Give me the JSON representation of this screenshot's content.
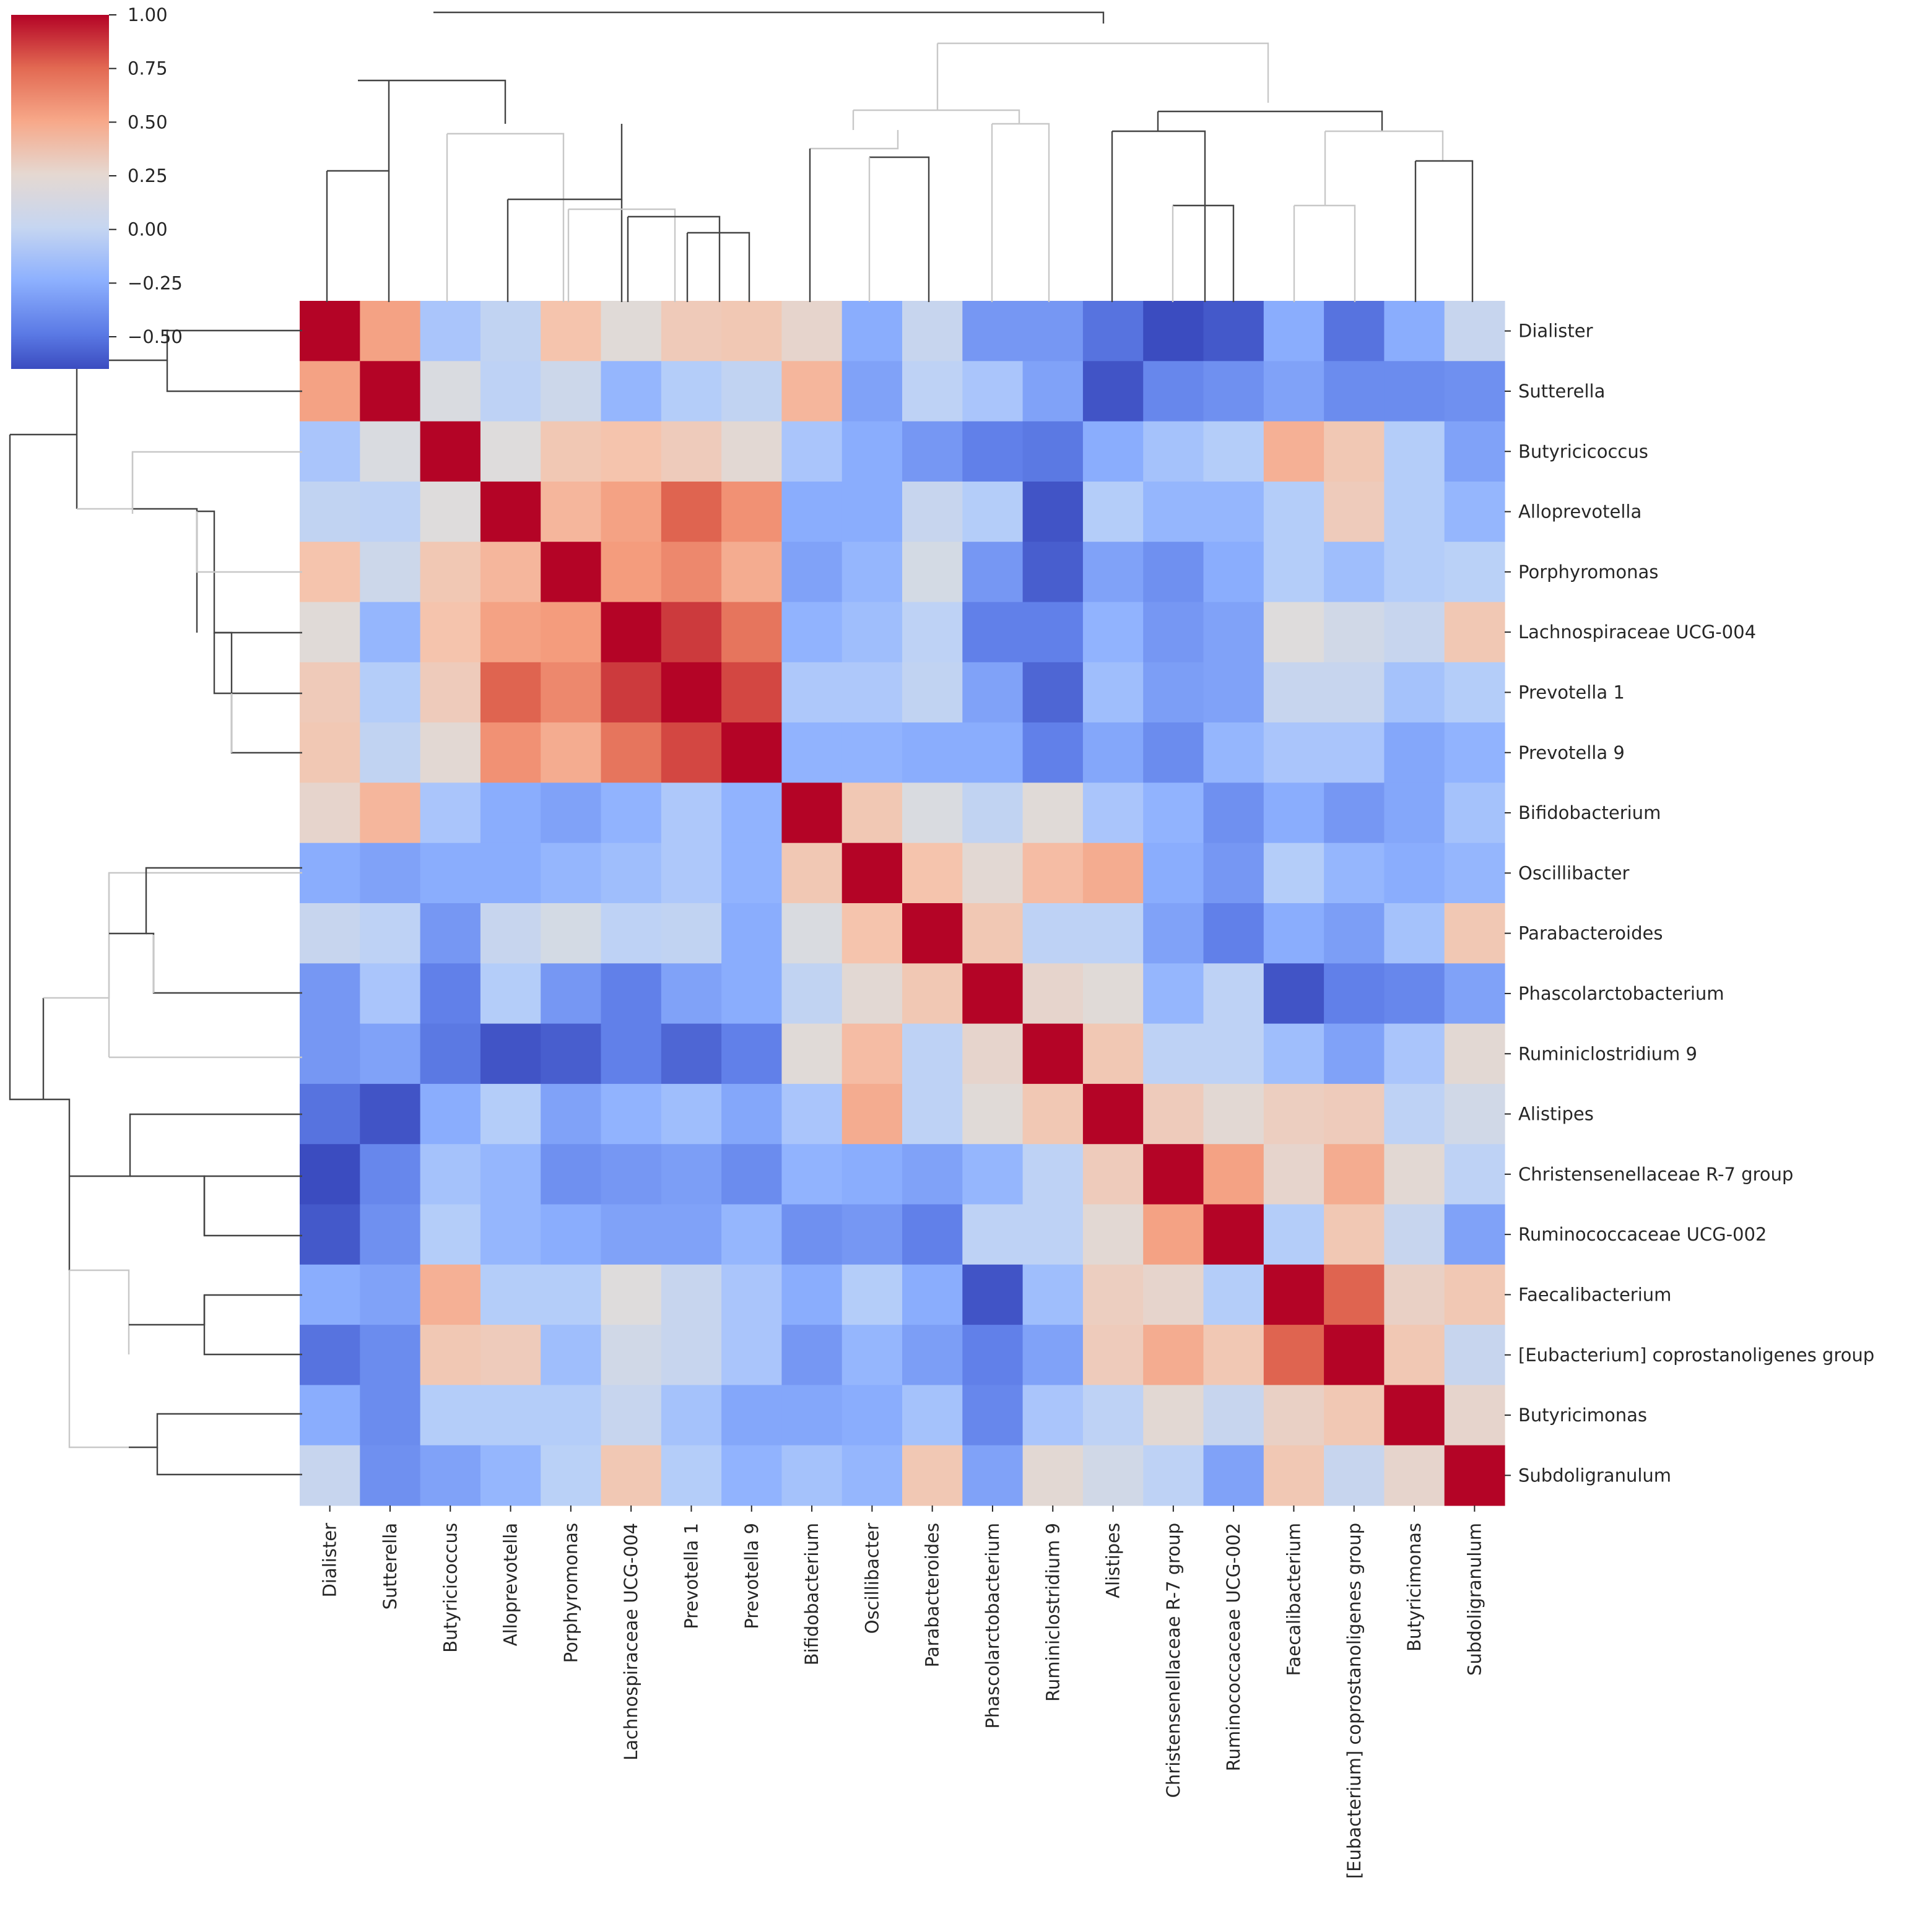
{
  "chart_data": {
    "type": "heatmap",
    "title": "",
    "xlabel": "",
    "ylabel": "",
    "colormap": "coolwarm",
    "vmin": -0.65,
    "vmax": 1.0,
    "colorbar": {
      "ticks": [
        1.0,
        0.75,
        0.5,
        0.25,
        0.0,
        -0.25,
        -0.5
      ],
      "tick_labels": [
        "1.00",
        "0.75",
        "0.50",
        "0.25",
        "0.00",
        "−0.25",
        "−0.50"
      ],
      "placement": "top-left"
    },
    "labels": [
      "Dialister",
      "Sutterella",
      "Butyricicoccus",
      "Alloprevotella",
      "Porphyromonas",
      "Lachnospiraceae UCG-004",
      "Prevotella 1",
      "Prevotella 9",
      "Bifidobacterium",
      "Oscillibacter",
      "Parabacteroides",
      "Phascolarctobacterium",
      "Ruminiclostridium 9",
      "Alistipes",
      "Christensenellaceae R-7 group",
      "Ruminococcaceae UCG-002",
      "Faecalibacterium",
      "[Eubacterium] coprostanoligenes group",
      "Butyricimonas",
      "Subdoligranulum"
    ],
    "matrix": [
      [
        1.0,
        0.55,
        -0.1,
        0.02,
        0.38,
        0.2,
        0.33,
        0.35,
        0.25,
        -0.25,
        0.05,
        -0.35,
        -0.35,
        -0.5,
        -0.65,
        -0.6,
        -0.25,
        -0.5,
        -0.25,
        0.05
      ],
      [
        0.55,
        1.0,
        0.15,
        0.0,
        0.08,
        -0.2,
        -0.05,
        0.02,
        0.45,
        -0.3,
        0.0,
        -0.1,
        -0.3,
        -0.62,
        -0.42,
        -0.38,
        -0.3,
        -0.4,
        -0.4,
        -0.38
      ],
      [
        -0.1,
        0.15,
        1.0,
        0.18,
        0.35,
        0.38,
        0.32,
        0.22,
        -0.1,
        -0.25,
        -0.35,
        -0.45,
        -0.48,
        -0.25,
        -0.12,
        -0.05,
        0.48,
        0.35,
        -0.05,
        -0.3
      ],
      [
        0.02,
        0.0,
        0.18,
        1.0,
        0.45,
        0.55,
        0.78,
        0.62,
        -0.25,
        -0.25,
        0.05,
        -0.05,
        -0.62,
        -0.05,
        -0.2,
        -0.2,
        -0.05,
        0.32,
        -0.05,
        -0.2
      ],
      [
        0.38,
        0.08,
        0.35,
        0.45,
        1.0,
        0.58,
        0.65,
        0.5,
        -0.3,
        -0.2,
        0.12,
        -0.35,
        -0.58,
        -0.3,
        -0.38,
        -0.25,
        -0.05,
        -0.15,
        -0.05,
        -0.02
      ],
      [
        0.2,
        -0.2,
        0.38,
        0.55,
        0.58,
        1.0,
        0.88,
        0.72,
        -0.22,
        -0.15,
        0.0,
        -0.45,
        -0.45,
        -0.22,
        -0.35,
        -0.3,
        0.18,
        0.1,
        0.05,
        0.35
      ],
      [
        0.33,
        -0.05,
        0.32,
        0.78,
        0.65,
        0.88,
        1.0,
        0.85,
        -0.08,
        -0.08,
        0.02,
        -0.3,
        -0.55,
        -0.15,
        -0.32,
        -0.3,
        0.05,
        0.05,
        -0.12,
        -0.05
      ],
      [
        0.35,
        0.02,
        0.22,
        0.62,
        0.5,
        0.72,
        0.85,
        1.0,
        -0.22,
        -0.22,
        -0.25,
        -0.25,
        -0.45,
        -0.28,
        -0.4,
        -0.2,
        -0.1,
        -0.1,
        -0.28,
        -0.22
      ],
      [
        0.25,
        0.45,
        -0.1,
        -0.25,
        -0.3,
        -0.22,
        -0.08,
        -0.22,
        1.0,
        0.35,
        0.15,
        0.02,
        0.2,
        -0.1,
        -0.22,
        -0.38,
        -0.25,
        -0.35,
        -0.28,
        -0.12
      ],
      [
        -0.25,
        -0.3,
        -0.25,
        -0.25,
        -0.2,
        -0.15,
        -0.08,
        -0.22,
        0.35,
        1.0,
        0.38,
        0.22,
        0.42,
        0.5,
        -0.25,
        -0.35,
        -0.05,
        -0.2,
        -0.25,
        -0.2
      ],
      [
        0.05,
        0.0,
        -0.35,
        0.05,
        0.12,
        0.0,
        0.02,
        -0.25,
        0.15,
        0.38,
        1.0,
        0.35,
        0.0,
        0.0,
        -0.3,
        -0.45,
        -0.25,
        -0.32,
        -0.12,
        0.35
      ],
      [
        -0.35,
        -0.1,
        -0.45,
        -0.05,
        -0.35,
        -0.45,
        -0.3,
        -0.25,
        0.02,
        0.22,
        0.35,
        1.0,
        0.25,
        0.2,
        -0.2,
        0.0,
        -0.62,
        -0.45,
        -0.42,
        -0.3
      ],
      [
        -0.35,
        -0.3,
        -0.48,
        -0.62,
        -0.58,
        -0.45,
        -0.55,
        -0.45,
        0.2,
        0.42,
        0.0,
        0.25,
        1.0,
        0.35,
        0.0,
        0.0,
        -0.15,
        -0.3,
        -0.1,
        0.22
      ],
      [
        -0.5,
        -0.62,
        -0.25,
        -0.05,
        -0.3,
        -0.22,
        -0.15,
        -0.28,
        -0.1,
        0.5,
        0.0,
        0.2,
        0.35,
        1.0,
        0.32,
        0.22,
        0.3,
        0.32,
        0.0,
        0.1
      ],
      [
        -0.65,
        -0.42,
        -0.12,
        -0.2,
        -0.38,
        -0.35,
        -0.32,
        -0.4,
        -0.22,
        -0.25,
        -0.3,
        -0.2,
        0.0,
        0.32,
        1.0,
        0.55,
        0.25,
        0.5,
        0.22,
        0.0
      ],
      [
        -0.6,
        -0.38,
        -0.05,
        -0.2,
        -0.25,
        -0.3,
        -0.3,
        -0.2,
        -0.38,
        -0.35,
        -0.45,
        0.0,
        0.0,
        0.22,
        0.55,
        1.0,
        -0.05,
        0.35,
        0.05,
        -0.3
      ],
      [
        -0.25,
        -0.3,
        0.48,
        -0.05,
        -0.05,
        0.18,
        0.05,
        -0.1,
        -0.25,
        -0.05,
        -0.25,
        -0.62,
        -0.15,
        0.3,
        0.25,
        -0.05,
        1.0,
        0.78,
        0.28,
        0.35
      ],
      [
        -0.5,
        -0.4,
        0.35,
        0.32,
        -0.15,
        0.1,
        0.05,
        -0.1,
        -0.35,
        -0.2,
        -0.32,
        -0.45,
        -0.3,
        0.32,
        0.5,
        0.35,
        0.78,
        1.0,
        0.35,
        0.05
      ],
      [
        -0.25,
        -0.4,
        -0.05,
        -0.05,
        -0.05,
        0.05,
        -0.12,
        -0.28,
        -0.28,
        -0.25,
        -0.12,
        -0.42,
        -0.1,
        0.0,
        0.22,
        0.05,
        0.28,
        0.35,
        1.0,
        0.25
      ],
      [
        0.05,
        -0.38,
        -0.3,
        -0.2,
        -0.02,
        0.35,
        -0.05,
        -0.22,
        -0.12,
        -0.2,
        0.35,
        -0.3,
        0.22,
        0.1,
        0.0,
        -0.3,
        0.35,
        0.05,
        0.25,
        1.0
      ]
    ]
  }
}
